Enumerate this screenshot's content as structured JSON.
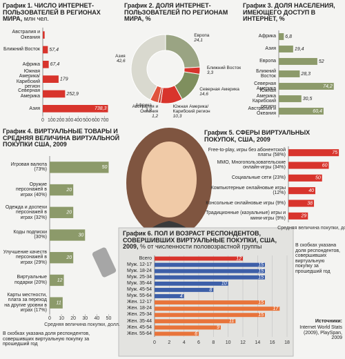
{
  "chart_data": [
    {
      "type": "bar",
      "title": "График 1. ЧИСЛО ИНТЕРНЕТ-ПОЛЬЗОВАТЕЛЕЙ В РЕГИОНАХ МИРА,",
      "subtitle": "млн чел.",
      "categories": [
        "Австралия и Океания",
        "Ближний Восток",
        "Африка",
        "Южная Америка/ Карибский регион",
        "Северная Америка",
        "Азия"
      ],
      "values": [
        21,
        57.4,
        67.4,
        179,
        252.9,
        738.3
      ],
      "value_labels": [
        null,
        "57,4",
        "67,4",
        "179",
        "252,9",
        "738,3"
      ],
      "color": "#d8342c",
      "xlim": [
        0,
        750
      ],
      "xticks": [
        0,
        100,
        200,
        300,
        400,
        500,
        600,
        700
      ]
    },
    {
      "type": "pie",
      "title": "График 2. ДОЛЯ ИНТЕРНЕТ-ПОЛЬЗОВАТЕЛЕЙ ПО РЕГИОНАМ МИРА, %",
      "categories": [
        "Европа",
        "Ближний Восток",
        "Северная Америка",
        "Южная Америка/ Карибский регион",
        "Австралия и Океания",
        "Африка",
        "Азия"
      ],
      "values": [
        24.1,
        3.3,
        14.6,
        10.3,
        1.2,
        3.9,
        42.6
      ],
      "value_labels": [
        "24,1",
        "3,3",
        "14,6",
        "10,3",
        "1,2",
        "3,9",
        "42,6"
      ],
      "colors": [
        "#9aa483",
        "#d8342c",
        "#7f8f5e",
        "#d8342c",
        "#c0392b",
        "#e0533c",
        "#d9d9cf"
      ]
    },
    {
      "type": "bar",
      "title": "График 3. ДОЛЯ НАСЕЛЕНИЯ, ИМЕЮЩЕГО ДОСТУП В ИНТЕРНЕТ, %",
      "categories": [
        "Африка",
        "Азия",
        "Европа",
        "Ближний Восток",
        "Северная Америка",
        "Южная Америка Карибский регион",
        "Австралия и Океания"
      ],
      "values": [
        6.8,
        19.4,
        52,
        28.3,
        74.2,
        30.5,
        60.4
      ],
      "value_labels": [
        "6,8",
        "19,4",
        "52",
        "28,3",
        "74,2",
        "30,5",
        "60,4"
      ],
      "color": "#8c9a6a",
      "xlim": [
        0,
        80
      ]
    },
    {
      "type": "bar",
      "title": "График 4. ВИРТУАЛЬНЫЕ ТОВАРЫ И СРЕДНЯЯ ВЕЛИЧИНА ВИРТУАЛЬНОЙ ПОКУПКИ США, 2009",
      "categories": [
        "Игровая валюта (73%)",
        "Оружие персонажей в играх (40%)",
        "Одежда и доспехи персонажей в играх (32%)",
        "Коды подписки (30%)",
        "Улучшение качеств персонажей в играх (29%)",
        "Виртуальные подарки (20%)",
        "Карты местности, плата за переход на другие уровни в играх (17%)"
      ],
      "values": [
        50,
        20,
        20,
        30,
        20,
        12,
        11
      ],
      "color": "#8c9a6a",
      "xlim": [
        0,
        55
      ],
      "xticks": [
        0,
        10,
        20,
        30,
        40,
        50
      ],
      "xlabel": "Средняя величина покупки, долл.",
      "note": "В скобках указана доля респондентов, совершивших виртуальную покупку за прошедший год"
    },
    {
      "type": "bar",
      "title": "График 5. СФЕРЫ ВИРТУАЛЬНЫХ ПОКУПОК, США, 2009",
      "categories": [
        "Free-to-play, игры без абонентской платы (58%)",
        "MMO, Многопользовательские онлайн-игры (34%)",
        "Социальные сети (23%)",
        "Компьютерные онлайновые игры (12%)",
        "Консольные онлайновые игры (9%)",
        "Традиционные (казуальные) игры и мини-игры (9%)"
      ],
      "values": [
        75,
        60,
        50,
        40,
        38,
        29
      ],
      "color": "#d8342c",
      "xlim": [
        0,
        80
      ],
      "xlabel": "Средняя величина покупки, долл.",
      "note": "В скобках указана доля респондентов, совершивших виртуальную покупку за прошедший год"
    },
    {
      "type": "bar",
      "title": "График 6. ПОЛ И ВОЗРАСТ РЕСПОНДЕНТОВ, СОВЕРШИВШИХ ВИРТУАЛЬНЫЕ ПОКУПКИ, США, 2009,",
      "subtitle": "% от численности половозрастной группы",
      "categories": [
        "Всего",
        "Муж. 12-17",
        "Муж. 18-24",
        "Муж. 25-34",
        "Муж. 35-44",
        "Муж. 45-54",
        "Муж. 55-64",
        "Жен. 12-17",
        "Жен. 18-24",
        "Жен. 25-34",
        "Жен. 35-44",
        "Жен. 45-54",
        "Жен. 55-64"
      ],
      "values": [
        12,
        15,
        15,
        15,
        10,
        8,
        4,
        15,
        17,
        15,
        11,
        9,
        6
      ],
      "colors": [
        "#d8342c",
        "#3d5fa8",
        "#3d5fa8",
        "#3d5fa8",
        "#3d5fa8",
        "#3d5fa8",
        "#3d5fa8",
        "#e8743b",
        "#e8743b",
        "#e8743b",
        "#e8743b",
        "#e8743b",
        "#e8743b"
      ],
      "xlim": [
        0,
        18
      ],
      "xticks": [
        0,
        2,
        4,
        6,
        8,
        10,
        12,
        14,
        16,
        18
      ],
      "grid": true
    }
  ],
  "sources": {
    "title": "Источники:",
    "text": "Internet World Stats (2009), PlaySpan, 2009"
  }
}
